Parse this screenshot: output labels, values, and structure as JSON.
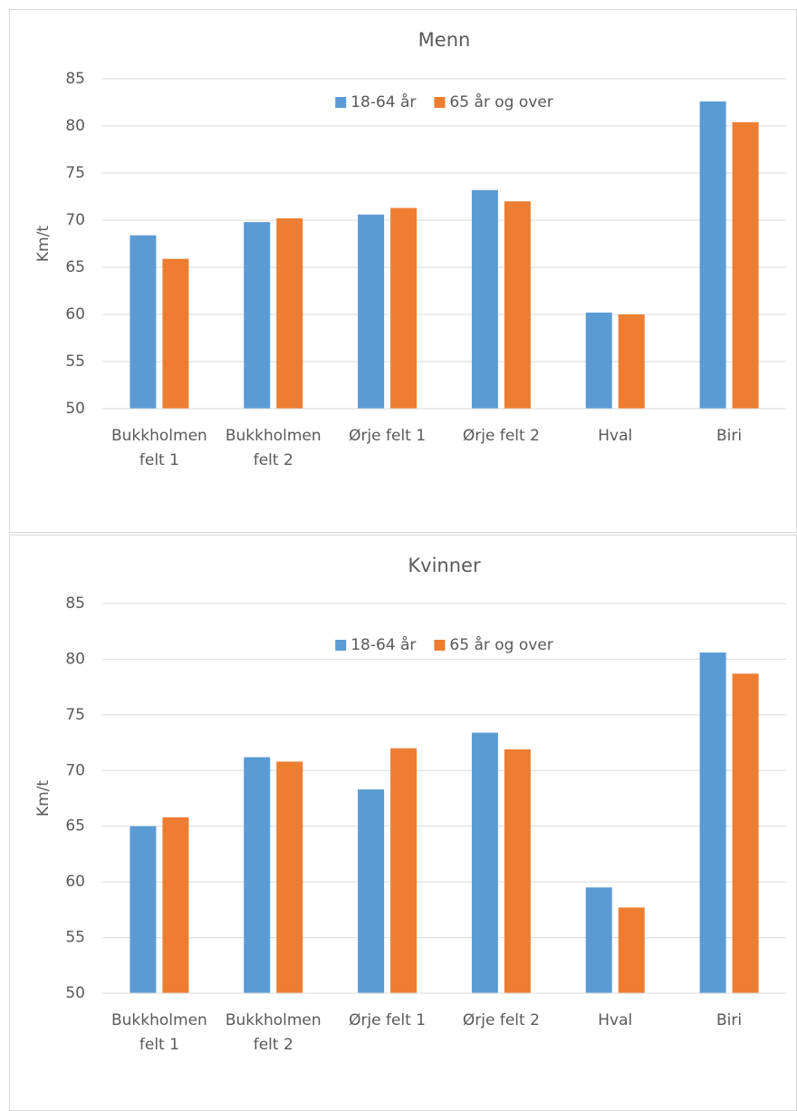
{
  "chart_data": [
    {
      "type": "bar",
      "title": "Menn",
      "y_label": "Km/t",
      "categories": [
        "Bukkholmen felt 1",
        "Bukkholmen felt 2",
        "Ørje felt 1",
        "Ørje felt 2",
        "Hval",
        "Biri"
      ],
      "series": [
        {
          "name": "18-64 år",
          "color": "#5b9bd5",
          "values": [
            68.4,
            69.8,
            70.6,
            73.2,
            60.2,
            82.6
          ]
        },
        {
          "name": "65 år og over",
          "color": "#ed7d31",
          "values": [
            65.9,
            70.2,
            71.3,
            72.0,
            60.0,
            80.4
          ]
        }
      ],
      "ylim": [
        50,
        85
      ],
      "yticks": [
        50,
        55,
        60,
        65,
        70,
        75,
        80,
        85
      ],
      "grid": true,
      "legend": "top"
    },
    {
      "type": "bar",
      "title": "Kvinner",
      "y_label": "Km/t",
      "categories": [
        "Bukkholmen felt 1",
        "Bukkholmen felt 2",
        "Ørje felt 1",
        "Ørje felt 2",
        "Hval",
        "Biri"
      ],
      "series": [
        {
          "name": "18-64 år",
          "color": "#5b9bd5",
          "values": [
            65.0,
            71.2,
            68.3,
            73.4,
            59.5,
            80.6
          ]
        },
        {
          "name": "65 år og over",
          "color": "#ed7d31",
          "values": [
            65.8,
            70.8,
            72.0,
            71.9,
            57.7,
            78.7
          ]
        }
      ],
      "ylim": [
        50,
        85
      ],
      "yticks": [
        50,
        55,
        60,
        65,
        70,
        75,
        80,
        85
      ],
      "grid": true,
      "legend": "top"
    }
  ]
}
